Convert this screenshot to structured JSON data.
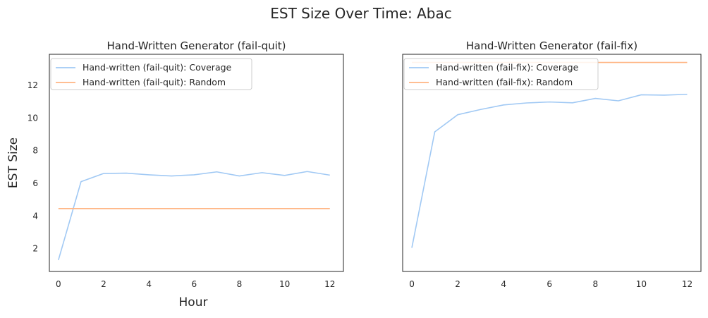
{
  "figure": {
    "suptitle": "EST Size Over Time: Abac",
    "xlabel": "Hour",
    "ylabel": "EST Size"
  },
  "colors": {
    "coverage": "#a1c9f4",
    "random": "#ffb482",
    "axes": "#262626"
  },
  "chart_data": [
    {
      "type": "line",
      "title": "Hand-Written Generator (fail-quit)",
      "xlabel": "Hour",
      "ylabel": "EST Size",
      "xlim": [
        -0.4,
        12.6
      ],
      "ylim": [
        0.6,
        13.9
      ],
      "xticks": [
        0,
        2,
        4,
        6,
        8,
        10,
        12
      ],
      "yticks": [
        2,
        4,
        6,
        8,
        10,
        12
      ],
      "legend": "upper-left",
      "grid": false,
      "series": [
        {
          "name": "Hand-written (fail-quit): Coverage",
          "color": "#a1c9f4",
          "x": [
            0,
            1,
            2,
            3,
            4,
            5,
            6,
            7,
            8,
            9,
            10,
            11,
            12
          ],
          "y": [
            1.3,
            6.1,
            6.6,
            6.62,
            6.52,
            6.45,
            6.52,
            6.7,
            6.45,
            6.65,
            6.48,
            6.72,
            6.5
          ]
        },
        {
          "name": "Hand-written (fail-quit): Random",
          "color": "#ffb482",
          "x": [
            0,
            1,
            2,
            3,
            4,
            5,
            6,
            7,
            8,
            9,
            10,
            11,
            12
          ],
          "y": [
            4.45,
            4.45,
            4.45,
            4.45,
            4.45,
            4.45,
            4.45,
            4.45,
            4.45,
            4.45,
            4.45,
            4.45,
            4.45
          ]
        }
      ]
    },
    {
      "type": "line",
      "title": "Hand-Written Generator (fail-fix)",
      "xlabel": "",
      "ylabel": "",
      "xlim": [
        -0.4,
        12.6
      ],
      "ylim": [
        0.6,
        13.9
      ],
      "xticks": [
        0,
        2,
        4,
        6,
        8,
        10,
        12
      ],
      "yticks": [],
      "legend": "upper-left",
      "grid": false,
      "series": [
        {
          "name": "Hand-written (fail-fix): Coverage",
          "color": "#a1c9f4",
          "x": [
            0,
            1,
            2,
            3,
            4,
            5,
            6,
            7,
            8,
            9,
            10,
            11,
            12
          ],
          "y": [
            2.05,
            9.15,
            10.2,
            10.52,
            10.8,
            10.92,
            10.98,
            10.93,
            11.2,
            11.05,
            11.42,
            11.4,
            11.45
          ]
        },
        {
          "name": "Hand-written (fail-fix): Random",
          "color": "#ffb482",
          "x": [
            0,
            1,
            2,
            3,
            4,
            5,
            6,
            7,
            8,
            9,
            10,
            11,
            12
          ],
          "y": [
            13.4,
            13.4,
            13.4,
            13.4,
            13.4,
            13.4,
            13.4,
            13.4,
            13.4,
            13.4,
            13.4,
            13.4,
            13.4
          ]
        }
      ]
    }
  ]
}
